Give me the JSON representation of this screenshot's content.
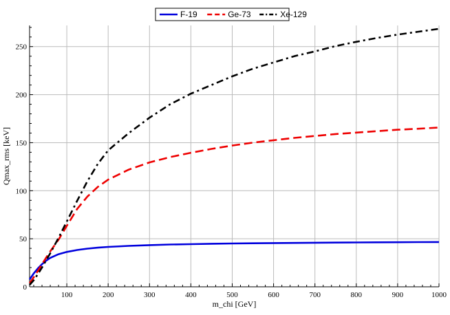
{
  "chart_data": {
    "type": "line",
    "title": "",
    "xlabel": "m_chi [GeV]",
    "ylabel": "Qmax_rms [keV]",
    "xlim": [
      10,
      1000
    ],
    "ylim": [
      0,
      272
    ],
    "xticks": [
      100,
      200,
      300,
      400,
      500,
      600,
      700,
      800,
      900,
      1000
    ],
    "yticks": [
      0,
      50,
      100,
      150,
      200,
      250
    ],
    "grid": true,
    "legend_position": "top-center",
    "x": [
      10,
      20,
      30,
      40,
      50,
      60,
      80,
      100,
      125,
      150,
      175,
      200,
      250,
      300,
      350,
      400,
      450,
      500,
      550,
      600,
      650,
      700,
      750,
      800,
      850,
      900,
      950,
      1000
    ],
    "series": [
      {
        "name": "F-19",
        "color": "#0000dd",
        "dash": "solid",
        "values": [
          7.6,
          13.9,
          19.1,
          23.5,
          27.2,
          30.1,
          33.9,
          36.3,
          38.3,
          39.7,
          40.7,
          41.5,
          42.6,
          43.4,
          44.0,
          44.4,
          44.8,
          45.1,
          45.3,
          45.5,
          45.7,
          45.9,
          46.0,
          46.2,
          46.3,
          46.4,
          46.5,
          46.6
        ]
      },
      {
        "name": "Ge-73",
        "color": "#ee0000",
        "dash": "dashed",
        "values": [
          3.8,
          9.8,
          16.5,
          23.5,
          30.3,
          36.9,
          49.1,
          63.5,
          81.0,
          94.0,
          104.0,
          111.5,
          122.0,
          129.5,
          135.0,
          139.5,
          143.5,
          147.0,
          150.0,
          152.5,
          155.0,
          157.0,
          159.0,
          160.5,
          162.0,
          163.5,
          164.5,
          165.8
        ]
      },
      {
        "name": "Xe-129",
        "color": "#000000",
        "dash": "dashdot",
        "values": [
          2.0,
          6.8,
          13.2,
          20.0,
          27.5,
          35.0,
          51.0,
          68.0,
          89.5,
          110.0,
          128.0,
          142.0,
          160.0,
          176.0,
          190.0,
          201.0,
          210.0,
          219.0,
          227.0,
          233.5,
          240.0,
          245.0,
          250.5,
          255.0,
          259.0,
          262.5,
          265.5,
          268.5
        ]
      }
    ]
  }
}
